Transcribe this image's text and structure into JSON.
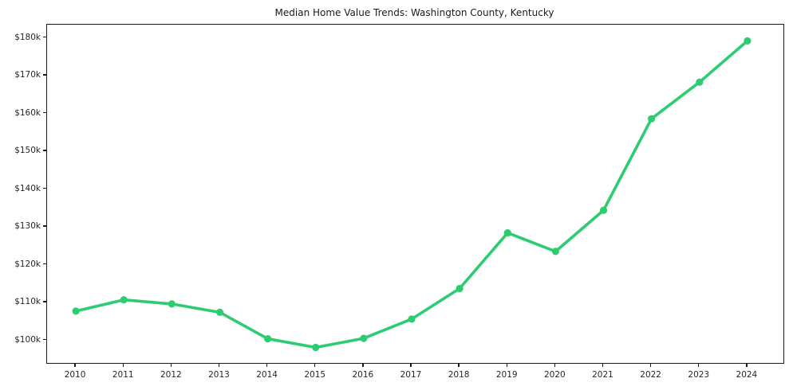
{
  "page": {
    "background_color": "#ffffff",
    "axis_color": "#1a1a1a",
    "tick_label_color": "#262626"
  },
  "chart_data": {
    "type": "line",
    "title": "Median Home Value Trends: Washington County, Kentucky",
    "xlabel": "",
    "ylabel": "",
    "grid": false,
    "legend_position": "none",
    "line_color": "#2ecc71",
    "marker": "circle",
    "x": [
      2010,
      2011,
      2012,
      2013,
      2014,
      2015,
      2016,
      2017,
      2018,
      2019,
      2020,
      2021,
      2022,
      2023,
      2024
    ],
    "series": [
      {
        "name": "Median Home Value",
        "values": [
          107700,
          110700,
          109600,
          107400,
          100400,
          98100,
          100500,
          105600,
          113700,
          128400,
          123500,
          134400,
          158600,
          168300,
          179200
        ]
      }
    ],
    "xlim": [
      2009.4,
      2024.75
    ],
    "ylim": [
      94000,
      183500
    ],
    "yticks": [
      {
        "value": 100000,
        "label": "$100k"
      },
      {
        "value": 110000,
        "label": "$110k"
      },
      {
        "value": 120000,
        "label": "$120k"
      },
      {
        "value": 130000,
        "label": "$130k"
      },
      {
        "value": 140000,
        "label": "$140k"
      },
      {
        "value": 150000,
        "label": "$150k"
      },
      {
        "value": 160000,
        "label": "$160k"
      },
      {
        "value": 170000,
        "label": "$170k"
      },
      {
        "value": 180000,
        "label": "$180k"
      }
    ],
    "xticks": [
      {
        "value": 2010,
        "label": "2010"
      },
      {
        "value": 2011,
        "label": "2011"
      },
      {
        "value": 2012,
        "label": "2012"
      },
      {
        "value": 2013,
        "label": "2013"
      },
      {
        "value": 2014,
        "label": "2014"
      },
      {
        "value": 2015,
        "label": "2015"
      },
      {
        "value": 2016,
        "label": "2016"
      },
      {
        "value": 2017,
        "label": "2017"
      },
      {
        "value": 2018,
        "label": "2018"
      },
      {
        "value": 2019,
        "label": "2019"
      },
      {
        "value": 2020,
        "label": "2020"
      },
      {
        "value": 2021,
        "label": "2021"
      },
      {
        "value": 2022,
        "label": "2022"
      },
      {
        "value": 2023,
        "label": "2023"
      },
      {
        "value": 2024,
        "label": "2024"
      }
    ]
  }
}
